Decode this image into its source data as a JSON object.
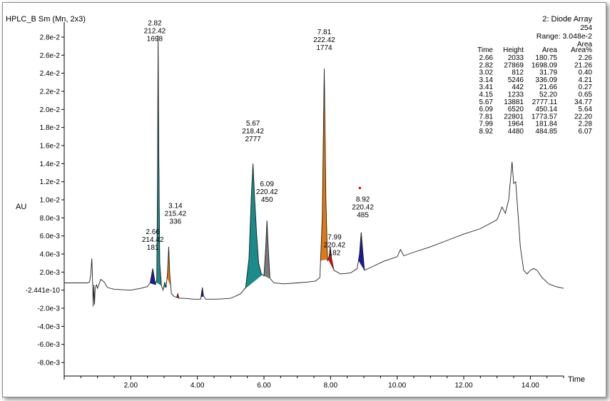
{
  "header": {
    "title": "HPLC_B Sm (Mn, 2x3)",
    "detector": "2: Diode Array",
    "wavelength": "254",
    "range": "Range: 3.048e-2"
  },
  "peak_table": {
    "area_header_top": "Area",
    "columns": [
      "Time",
      "Height",
      "Area",
      "Area%"
    ],
    "rows": [
      [
        "2.66",
        "2033",
        "180.75",
        "2.26"
      ],
      [
        "2.82",
        "27869",
        "1698.09",
        "21.26"
      ],
      [
        "3.02",
        "812",
        "31.79",
        "0.40"
      ],
      [
        "3.14",
        "5246",
        "336.09",
        "4.21"
      ],
      [
        "3.41",
        "442",
        "21.66",
        "0.27"
      ],
      [
        "4.15",
        "1233",
        "52.20",
        "0.65"
      ],
      [
        "5.67",
        "13881",
        "2777.11",
        "34.77"
      ],
      [
        "6.09",
        "6520",
        "450.14",
        "5.64"
      ],
      [
        "7.81",
        "22801",
        "1773.57",
        "22.20"
      ],
      [
        "7.99",
        "1964",
        "181.84",
        "2.28"
      ],
      [
        "8.92",
        "4480",
        "484.85",
        "6.07"
      ]
    ]
  },
  "chart_data": {
    "type": "line",
    "xlabel": "Time",
    "ylabel": "AU",
    "xlim": [
      0.0,
      15.0
    ],
    "ylim": [
      -0.0095,
      0.0295
    ],
    "x_ticks": [
      2.0,
      4.0,
      6.0,
      8.0,
      10.0,
      12.0,
      14.0
    ],
    "x_tick_labels": [
      "2.00",
      "4.00",
      "6.00",
      "8.00",
      "10.00",
      "12.00",
      "14.00"
    ],
    "y_ticks": [
      0.028,
      0.026,
      0.024,
      0.022,
      0.02,
      0.018,
      0.016,
      0.014,
      0.012,
      0.01,
      0.008,
      0.006,
      0.004,
      0.002,
      0.0,
      -0.002,
      -0.004,
      -0.006,
      -0.008
    ],
    "y_tick_labels": [
      "2.8e-2",
      "2.6e-2",
      "2.4e-2",
      "2.2e-2",
      "2.0e-2",
      "1.8e-2",
      "1.6e-2",
      "1.4e-2",
      "1.2e-2",
      "1.0e-2",
      "8.0e-3",
      "6.0e-3",
      "4.0e-3",
      "2.0e-3",
      "-2.441e-10",
      "-2.0e-3",
      "-4.0e-3",
      "-6.0e-3",
      "-8.0e-3"
    ],
    "trace": [
      [
        0.0,
        0.0008
      ],
      [
        0.7,
        0.0008
      ],
      [
        0.76,
        0.0009
      ],
      [
        0.8,
        0.0018
      ],
      [
        0.83,
        0.0035
      ],
      [
        0.85,
        0.0012
      ],
      [
        0.87,
        -0.0018
      ],
      [
        0.89,
        0.0006
      ],
      [
        0.91,
        -0.0016
      ],
      [
        0.93,
        0.0002
      ],
      [
        0.97,
        0.0006
      ],
      [
        1.0,
        0.0002
      ],
      [
        1.05,
        0.0007
      ],
      [
        1.1,
        0.0012
      ],
      [
        1.2,
        0.0009
      ],
      [
        1.3,
        0.0003
      ],
      [
        1.5,
        0.0001
      ],
      [
        2.0,
        0.0
      ],
      [
        2.3,
        0.0002
      ],
      [
        2.5,
        0.0004
      ],
      [
        2.58,
        0.0008
      ],
      [
        2.62,
        0.0016
      ],
      [
        2.66,
        0.0024
      ],
      [
        2.7,
        0.0015
      ],
      [
        2.74,
        0.0006
      ],
      [
        2.78,
        0.0012
      ],
      [
        2.8,
        0.011
      ],
      [
        2.82,
        0.0282
      ],
      [
        2.84,
        0.016
      ],
      [
        2.87,
        0.003
      ],
      [
        2.92,
        0.0005
      ],
      [
        2.97,
        0.0
      ],
      [
        3.02,
        0.0009
      ],
      [
        3.06,
        0.0003
      ],
      [
        3.1,
        0.0018
      ],
      [
        3.14,
        0.0048
      ],
      [
        3.17,
        0.0018
      ],
      [
        3.22,
        -0.0004
      ],
      [
        3.3,
        -0.0007
      ],
      [
        3.38,
        -0.0008
      ],
      [
        3.41,
        -0.0004
      ],
      [
        3.45,
        -0.0009
      ],
      [
        3.6,
        -0.0009
      ],
      [
        3.9,
        -0.001
      ],
      [
        4.1,
        -0.001
      ],
      [
        4.13,
        -0.0002
      ],
      [
        4.15,
        0.0003
      ],
      [
        4.18,
        -0.0006
      ],
      [
        4.25,
        -0.001
      ],
      [
        4.6,
        -0.001
      ],
      [
        5.0,
        -0.0009
      ],
      [
        5.3,
        -0.0004
      ],
      [
        5.45,
        0.0003
      ],
      [
        5.55,
        0.0035
      ],
      [
        5.62,
        0.0105
      ],
      [
        5.67,
        0.014
      ],
      [
        5.72,
        0.0102
      ],
      [
        5.78,
        0.0062
      ],
      [
        5.84,
        0.003
      ],
      [
        5.92,
        0.0018
      ],
      [
        6.0,
        0.0016
      ],
      [
        6.05,
        0.0045
      ],
      [
        6.09,
        0.0077
      ],
      [
        6.13,
        0.0045
      ],
      [
        6.18,
        0.0013
      ],
      [
        6.3,
        0.0008
      ],
      [
        6.6,
        0.0007
      ],
      [
        7.0,
        0.0008
      ],
      [
        7.3,
        0.0009
      ],
      [
        7.55,
        0.001
      ],
      [
        7.68,
        0.0014
      ],
      [
        7.75,
        0.008
      ],
      [
        7.81,
        0.0245
      ],
      [
        7.86,
        0.01
      ],
      [
        7.91,
        0.0032
      ],
      [
        7.96,
        0.0038
      ],
      [
        7.99,
        0.0048
      ],
      [
        8.03,
        0.0035
      ],
      [
        8.1,
        0.0022
      ],
      [
        8.3,
        0.0018
      ],
      [
        8.6,
        0.0019
      ],
      [
        8.8,
        0.0024
      ],
      [
        8.87,
        0.004
      ],
      [
        8.92,
        0.0064
      ],
      [
        8.97,
        0.0042
      ],
      [
        9.02,
        0.0022
      ],
      [
        9.2,
        0.0025
      ],
      [
        9.6,
        0.0032
      ],
      [
        10.0,
        0.0037
      ],
      [
        10.1,
        0.0045
      ],
      [
        10.2,
        0.0038
      ],
      [
        10.5,
        0.0042
      ],
      [
        11.0,
        0.0048
      ],
      [
        11.5,
        0.0055
      ],
      [
        12.0,
        0.0062
      ],
      [
        12.5,
        0.0068
      ],
      [
        13.0,
        0.0078
      ],
      [
        13.15,
        0.0092
      ],
      [
        13.25,
        0.0085
      ],
      [
        13.35,
        0.01
      ],
      [
        13.45,
        0.0142
      ],
      [
        13.5,
        0.0118
      ],
      [
        13.56,
        0.012
      ],
      [
        13.62,
        0.009
      ],
      [
        13.7,
        0.0048
      ],
      [
        13.8,
        0.0022
      ],
      [
        13.9,
        0.0018
      ],
      [
        14.0,
        0.0022
      ],
      [
        14.1,
        0.0024
      ],
      [
        14.2,
        0.0022
      ],
      [
        14.35,
        0.0014
      ],
      [
        14.55,
        0.0007
      ],
      [
        14.75,
        0.0004
      ],
      [
        15.0,
        0.0002
      ]
    ],
    "peaks": [
      {
        "rt": 2.66,
        "start": 2.58,
        "end": 2.74,
        "color": "#1a1a9a",
        "label": [
          "2.66",
          "214.42",
          "181"
        ],
        "label_pos": [
          2.66,
          0.0062
        ]
      },
      {
        "rt": 2.82,
        "start": 2.76,
        "end": 2.92,
        "color": "#1a8a8a",
        "label": [
          "2.82",
          "212.42",
          "1698"
        ],
        "label_pos": [
          2.72,
          0.0293
        ]
      },
      {
        "rt": 3.02,
        "start": 2.99,
        "end": 3.06,
        "color": "#1a8a8a",
        "label": null
      },
      {
        "rt": 3.14,
        "start": 3.09,
        "end": 3.2,
        "color": "#e07a10",
        "label": [
          "3.14",
          "215.42",
          "336"
        ],
        "label_pos": [
          3.34,
          0.0091
        ]
      },
      {
        "rt": 3.41,
        "start": 3.36,
        "end": 3.45,
        "color": "#cc1010",
        "label": null
      },
      {
        "rt": 4.15,
        "start": 4.11,
        "end": 4.19,
        "color": "#1a1a9a",
        "label": null
      },
      {
        "rt": 5.67,
        "start": 5.4,
        "end": 5.95,
        "color": "#1a8a8a",
        "label": [
          "5.67",
          "218.42",
          "2777"
        ],
        "label_pos": [
          5.67,
          0.0182
        ]
      },
      {
        "rt": 6.09,
        "start": 6.0,
        "end": 6.18,
        "color": "#7a7a7a",
        "label": [
          "6.09",
          "220.42",
          "450"
        ],
        "label_pos": [
          6.09,
          0.0115
        ]
      },
      {
        "rt": 7.81,
        "start": 7.7,
        "end": 7.93,
        "color": "#e07a10",
        "label": [
          "7.81",
          "222.42",
          "1774"
        ],
        "label_pos": [
          7.81,
          0.0283
        ]
      },
      {
        "rt": 7.99,
        "start": 7.93,
        "end": 8.1,
        "color": "#cc1010",
        "label": [
          "7.99",
          "220.42",
          "182"
        ],
        "label_pos": [
          8.12,
          0.0056
        ]
      },
      {
        "rt": 8.92,
        "start": 8.84,
        "end": 9.02,
        "color": "#1a1a9a",
        "label": [
          "8.92",
          "220.42",
          "485"
        ],
        "label_pos": [
          8.97,
          0.0098
        ]
      }
    ],
    "marker": {
      "x": 8.88,
      "y": 0.0113,
      "color": "#e01010"
    },
    "grid": false,
    "legend": "none"
  }
}
